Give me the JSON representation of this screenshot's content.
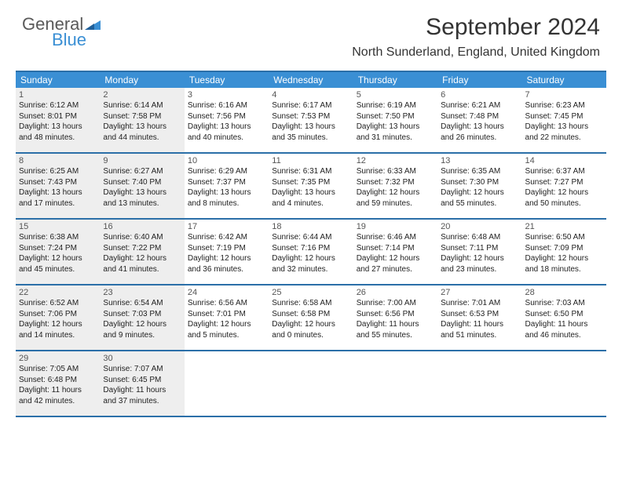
{
  "brand": {
    "part1": "General",
    "part2": "Blue"
  },
  "colors": {
    "header_bg": "#3a8fd4",
    "rule": "#2b6fa8",
    "shaded": "#eeeeee",
    "logo_blue": "#3a8fd4",
    "logo_gray": "#5a5a5a",
    "text": "#222222"
  },
  "title": "September 2024",
  "location": "North Sunderland, England, United Kingdom",
  "dow": [
    "Sunday",
    "Monday",
    "Tuesday",
    "Wednesday",
    "Thursday",
    "Friday",
    "Saturday"
  ],
  "weeks": [
    [
      {
        "n": "1",
        "shaded": true,
        "sr": "Sunrise: 6:12 AM",
        "ss": "Sunset: 8:01 PM",
        "d1": "Daylight: 13 hours",
        "d2": "and 48 minutes."
      },
      {
        "n": "2",
        "shaded": true,
        "sr": "Sunrise: 6:14 AM",
        "ss": "Sunset: 7:58 PM",
        "d1": "Daylight: 13 hours",
        "d2": "and 44 minutes."
      },
      {
        "n": "3",
        "shaded": false,
        "sr": "Sunrise: 6:16 AM",
        "ss": "Sunset: 7:56 PM",
        "d1": "Daylight: 13 hours",
        "d2": "and 40 minutes."
      },
      {
        "n": "4",
        "shaded": false,
        "sr": "Sunrise: 6:17 AM",
        "ss": "Sunset: 7:53 PM",
        "d1": "Daylight: 13 hours",
        "d2": "and 35 minutes."
      },
      {
        "n": "5",
        "shaded": false,
        "sr": "Sunrise: 6:19 AM",
        "ss": "Sunset: 7:50 PM",
        "d1": "Daylight: 13 hours",
        "d2": "and 31 minutes."
      },
      {
        "n": "6",
        "shaded": false,
        "sr": "Sunrise: 6:21 AM",
        "ss": "Sunset: 7:48 PM",
        "d1": "Daylight: 13 hours",
        "d2": "and 26 minutes."
      },
      {
        "n": "7",
        "shaded": false,
        "sr": "Sunrise: 6:23 AM",
        "ss": "Sunset: 7:45 PM",
        "d1": "Daylight: 13 hours",
        "d2": "and 22 minutes."
      }
    ],
    [
      {
        "n": "8",
        "shaded": true,
        "sr": "Sunrise: 6:25 AM",
        "ss": "Sunset: 7:43 PM",
        "d1": "Daylight: 13 hours",
        "d2": "and 17 minutes."
      },
      {
        "n": "9",
        "shaded": true,
        "sr": "Sunrise: 6:27 AM",
        "ss": "Sunset: 7:40 PM",
        "d1": "Daylight: 13 hours",
        "d2": "and 13 minutes."
      },
      {
        "n": "10",
        "shaded": false,
        "sr": "Sunrise: 6:29 AM",
        "ss": "Sunset: 7:37 PM",
        "d1": "Daylight: 13 hours",
        "d2": "and 8 minutes."
      },
      {
        "n": "11",
        "shaded": false,
        "sr": "Sunrise: 6:31 AM",
        "ss": "Sunset: 7:35 PM",
        "d1": "Daylight: 13 hours",
        "d2": "and 4 minutes."
      },
      {
        "n": "12",
        "shaded": false,
        "sr": "Sunrise: 6:33 AM",
        "ss": "Sunset: 7:32 PM",
        "d1": "Daylight: 12 hours",
        "d2": "and 59 minutes."
      },
      {
        "n": "13",
        "shaded": false,
        "sr": "Sunrise: 6:35 AM",
        "ss": "Sunset: 7:30 PM",
        "d1": "Daylight: 12 hours",
        "d2": "and 55 minutes."
      },
      {
        "n": "14",
        "shaded": false,
        "sr": "Sunrise: 6:37 AM",
        "ss": "Sunset: 7:27 PM",
        "d1": "Daylight: 12 hours",
        "d2": "and 50 minutes."
      }
    ],
    [
      {
        "n": "15",
        "shaded": true,
        "sr": "Sunrise: 6:38 AM",
        "ss": "Sunset: 7:24 PM",
        "d1": "Daylight: 12 hours",
        "d2": "and 45 minutes."
      },
      {
        "n": "16",
        "shaded": true,
        "sr": "Sunrise: 6:40 AM",
        "ss": "Sunset: 7:22 PM",
        "d1": "Daylight: 12 hours",
        "d2": "and 41 minutes."
      },
      {
        "n": "17",
        "shaded": false,
        "sr": "Sunrise: 6:42 AM",
        "ss": "Sunset: 7:19 PM",
        "d1": "Daylight: 12 hours",
        "d2": "and 36 minutes."
      },
      {
        "n": "18",
        "shaded": false,
        "sr": "Sunrise: 6:44 AM",
        "ss": "Sunset: 7:16 PM",
        "d1": "Daylight: 12 hours",
        "d2": "and 32 minutes."
      },
      {
        "n": "19",
        "shaded": false,
        "sr": "Sunrise: 6:46 AM",
        "ss": "Sunset: 7:14 PM",
        "d1": "Daylight: 12 hours",
        "d2": "and 27 minutes."
      },
      {
        "n": "20",
        "shaded": false,
        "sr": "Sunrise: 6:48 AM",
        "ss": "Sunset: 7:11 PM",
        "d1": "Daylight: 12 hours",
        "d2": "and 23 minutes."
      },
      {
        "n": "21",
        "shaded": false,
        "sr": "Sunrise: 6:50 AM",
        "ss": "Sunset: 7:09 PM",
        "d1": "Daylight: 12 hours",
        "d2": "and 18 minutes."
      }
    ],
    [
      {
        "n": "22",
        "shaded": true,
        "sr": "Sunrise: 6:52 AM",
        "ss": "Sunset: 7:06 PM",
        "d1": "Daylight: 12 hours",
        "d2": "and 14 minutes."
      },
      {
        "n": "23",
        "shaded": true,
        "sr": "Sunrise: 6:54 AM",
        "ss": "Sunset: 7:03 PM",
        "d1": "Daylight: 12 hours",
        "d2": "and 9 minutes."
      },
      {
        "n": "24",
        "shaded": false,
        "sr": "Sunrise: 6:56 AM",
        "ss": "Sunset: 7:01 PM",
        "d1": "Daylight: 12 hours",
        "d2": "and 5 minutes."
      },
      {
        "n": "25",
        "shaded": false,
        "sr": "Sunrise: 6:58 AM",
        "ss": "Sunset: 6:58 PM",
        "d1": "Daylight: 12 hours",
        "d2": "and 0 minutes."
      },
      {
        "n": "26",
        "shaded": false,
        "sr": "Sunrise: 7:00 AM",
        "ss": "Sunset: 6:56 PM",
        "d1": "Daylight: 11 hours",
        "d2": "and 55 minutes."
      },
      {
        "n": "27",
        "shaded": false,
        "sr": "Sunrise: 7:01 AM",
        "ss": "Sunset: 6:53 PM",
        "d1": "Daylight: 11 hours",
        "d2": "and 51 minutes."
      },
      {
        "n": "28",
        "shaded": false,
        "sr": "Sunrise: 7:03 AM",
        "ss": "Sunset: 6:50 PM",
        "d1": "Daylight: 11 hours",
        "d2": "and 46 minutes."
      }
    ],
    [
      {
        "n": "29",
        "shaded": true,
        "sr": "Sunrise: 7:05 AM",
        "ss": "Sunset: 6:48 PM",
        "d1": "Daylight: 11 hours",
        "d2": "and 42 minutes."
      },
      {
        "n": "30",
        "shaded": true,
        "sr": "Sunrise: 7:07 AM",
        "ss": "Sunset: 6:45 PM",
        "d1": "Daylight: 11 hours",
        "d2": "and 37 minutes."
      },
      null,
      null,
      null,
      null,
      null
    ]
  ]
}
